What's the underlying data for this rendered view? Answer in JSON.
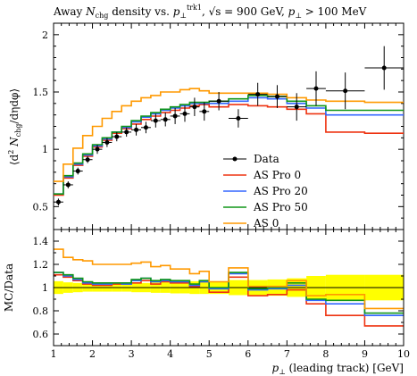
{
  "chart_data": {
    "type": "line",
    "title": "Away N_chg density vs. p_⊥^trk1, √s = 900 GeV, p_⊥ > 100 MeV",
    "title_parts": {
      "prefix": "Away ",
      "n_main": "N",
      "n_sub": "chg",
      "mid": " density vs. ",
      "p_main": "p",
      "p_sub": "⊥",
      "p_sup": "trk1",
      "energy": ", √s = 900 GeV, ",
      "cut_p": "p",
      "cut_sub": "⊥",
      "cut": " > 100 MeV"
    },
    "xlabel": "p_⊥ (leading track) [GeV]",
    "xlabel_parts": {
      "main": "p",
      "sub": "⊥",
      "rest": " (leading track) [GeV]"
    },
    "ylabel": "⟨d² N_chg/dηdφ⟩",
    "ylabel_parts": {
      "open": "⟨d",
      "sup": "2",
      "n": " N",
      "sub": "chg",
      "rest": "/dηdφ⟩"
    },
    "ratio_ylabel": "MC/Data",
    "xlim": [
      1,
      10
    ],
    "ylim": [
      0.3,
      2.1
    ],
    "ratio_ylim": [
      0.5,
      1.5
    ],
    "xticks": [
      1,
      2,
      3,
      4,
      5,
      6,
      7,
      8,
      9,
      10
    ],
    "yticks": [
      0.5,
      1,
      1.5,
      2
    ],
    "ratio_yticks": [
      0.6,
      0.8,
      1,
      1.2,
      1.4
    ],
    "bin_edges": [
      1.0,
      1.25,
      1.5,
      1.75,
      2.0,
      2.25,
      2.5,
      2.75,
      3.0,
      3.25,
      3.5,
      3.75,
      4.0,
      4.25,
      4.5,
      4.75,
      5.0,
      5.5,
      6.0,
      6.5,
      7.0,
      7.5,
      8.0,
      9.0,
      10.0
    ],
    "data": {
      "name": "Data",
      "color": "#000000",
      "x": [
        1.125,
        1.375,
        1.625,
        1.875,
        2.125,
        2.375,
        2.625,
        2.875,
        3.125,
        3.375,
        3.625,
        3.875,
        4.125,
        4.375,
        4.625,
        4.875,
        5.25,
        5.75,
        6.25,
        6.75,
        7.25,
        7.75,
        8.5,
        9.5
      ],
      "y": [
        0.54,
        0.69,
        0.81,
        0.91,
        1.0,
        1.06,
        1.11,
        1.15,
        1.17,
        1.19,
        1.25,
        1.26,
        1.29,
        1.31,
        1.37,
        1.33,
        1.42,
        1.27,
        1.48,
        1.46,
        1.37,
        1.53,
        1.51,
        1.71
      ],
      "yerr": [
        0.03,
        0.03,
        0.03,
        0.03,
        0.04,
        0.04,
        0.04,
        0.04,
        0.05,
        0.05,
        0.06,
        0.06,
        0.07,
        0.07,
        0.08,
        0.08,
        0.08,
        0.08,
        0.1,
        0.1,
        0.12,
        0.15,
        0.16,
        0.19
      ]
    },
    "series": [
      {
        "name": "AS Pro 0",
        "color": "#ee3311",
        "values": [
          0.6,
          0.75,
          0.86,
          0.94,
          1.02,
          1.08,
          1.14,
          1.18,
          1.22,
          1.26,
          1.29,
          1.32,
          1.34,
          1.36,
          1.38,
          1.39,
          1.37,
          1.39,
          1.38,
          1.37,
          1.35,
          1.31,
          1.15,
          1.14
        ]
      },
      {
        "name": "AS Pro 20",
        "color": "#3366ff",
        "values": [
          0.61,
          0.76,
          0.87,
          0.95,
          1.03,
          1.09,
          1.15,
          1.19,
          1.24,
          1.28,
          1.31,
          1.34,
          1.36,
          1.38,
          1.4,
          1.4,
          1.4,
          1.42,
          1.45,
          1.44,
          1.4,
          1.36,
          1.3,
          1.3
        ]
      },
      {
        "name": "AS Pro 50",
        "color": "#109618",
        "values": [
          0.61,
          0.77,
          0.88,
          0.96,
          1.04,
          1.1,
          1.15,
          1.2,
          1.25,
          1.29,
          1.32,
          1.35,
          1.37,
          1.39,
          1.41,
          1.41,
          1.42,
          1.44,
          1.47,
          1.46,
          1.42,
          1.38,
          1.34,
          1.34
        ]
      },
      {
        "name": "AS 0",
        "color": "#ff9900",
        "values": [
          0.72,
          0.87,
          1.01,
          1.12,
          1.2,
          1.27,
          1.33,
          1.38,
          1.42,
          1.45,
          1.47,
          1.5,
          1.5,
          1.52,
          1.53,
          1.51,
          1.49,
          1.49,
          1.49,
          1.48,
          1.45,
          1.43,
          1.42,
          1.41
        ]
      }
    ],
    "ratio_band": {
      "color": "#ffff00",
      "halfwidth": [
        0.055,
        0.045,
        0.04,
        0.035,
        0.035,
        0.035,
        0.035,
        0.035,
        0.04,
        0.04,
        0.045,
        0.045,
        0.05,
        0.05,
        0.055,
        0.055,
        0.055,
        0.065,
        0.065,
        0.07,
        0.08,
        0.1,
        0.11,
        0.11
      ]
    },
    "ratio_series": [
      {
        "name": "AS Pro 0",
        "values": [
          1.11,
          1.09,
          1.06,
          1.03,
          1.02,
          1.02,
          1.03,
          1.03,
          1.04,
          1.06,
          1.03,
          1.05,
          1.04,
          1.04,
          1.01,
          1.05,
          0.96,
          1.09,
          0.93,
          0.94,
          0.98,
          0.86,
          0.76,
          0.67
        ]
      },
      {
        "name": "AS Pro 20",
        "values": [
          1.13,
          1.1,
          1.07,
          1.04,
          1.03,
          1.03,
          1.04,
          1.03,
          1.06,
          1.08,
          1.05,
          1.06,
          1.05,
          1.05,
          1.02,
          1.05,
          0.99,
          1.12,
          0.98,
          0.99,
          1.02,
          0.89,
          0.86,
          0.76
        ]
      },
      {
        "name": "AS Pro 50",
        "values": [
          1.13,
          1.11,
          1.08,
          1.05,
          1.04,
          1.04,
          1.04,
          1.04,
          1.07,
          1.08,
          1.06,
          1.07,
          1.06,
          1.06,
          1.03,
          1.06,
          1.0,
          1.13,
          0.99,
          1.0,
          1.04,
          0.9,
          0.89,
          0.78
        ]
      },
      {
        "name": "AS 0",
        "values": [
          1.33,
          1.26,
          1.24,
          1.23,
          1.2,
          1.2,
          1.2,
          1.2,
          1.21,
          1.22,
          1.18,
          1.19,
          1.16,
          1.16,
          1.12,
          1.14,
          1.05,
          1.17,
          1.01,
          1.01,
          1.06,
          0.93,
          0.94,
          0.82
        ]
      }
    ],
    "legend_placement": "lower-right",
    "grid": false
  }
}
